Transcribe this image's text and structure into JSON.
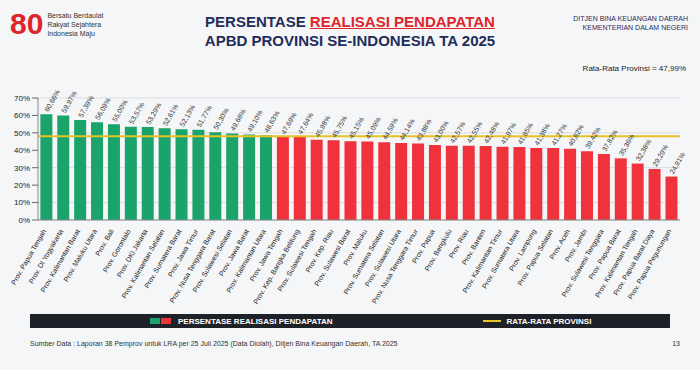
{
  "slide": {
    "logo_number": "80",
    "logo_text": [
      "Bersatu Berdaulat",
      "Rakyat Sejahtera",
      "Indonesia Maju"
    ],
    "title_lines": [
      "PERSENTASE REALISASI PENDAPATAN",
      "APBD PROVINSI SE-INDONESIA TA 2025"
    ],
    "title_highlight": "REALISASI PENDAPATAN",
    "agency": [
      "DITJEN BINA KEUANGAN DAERAH",
      "KEMENTERIAN DALAM NEGERI"
    ],
    "source": "Sumber Data : Laporan 38 Pemprov untuk LRA per 25 Juli 2025 (Data Diolah), Ditjen Bina Keuangan Daerah, TA 2025",
    "page": "13"
  },
  "chart_data": {
    "type": "bar",
    "categories": [
      "Prov. Papua Tengah",
      "Prov. DI Yogyakarta",
      "Prov. Kalimantan Barat",
      "Prov. Maluku Utara",
      "Prov. Bali",
      "Prov. Gorontalo",
      "Prov. DKI Jakarta",
      "Prov. Kalimantan Selatan",
      "Prov. Sumatera Barat",
      "Prov. Jawa Timur",
      "Prov. Nusa Tenggara Barat",
      "Prov. Sulawesi Selatan",
      "Prov. Jawa Barat",
      "Prov. Kalimantan Utara",
      "Prov. Jawa Tengah",
      "Prov. Kep. Bangka Belitung",
      "Prov. Sulawesi Tengah",
      "Prov. Kep. Riau",
      "Prov. Sulawesi Barat",
      "Prov. Maluku",
      "Prov. Sumatera Selatan",
      "Prov. Sulawesi Utara",
      "Prov. Nusa Tenggara Timur",
      "Prov. Papua",
      "Prov. Bengkulu",
      "Prov. Riau",
      "Prov. Banten",
      "Prov. Kalimantan Timur",
      "Prov. Sumatera Utara",
      "Prov. Lampung",
      "Prov. Papua Selatan",
      "Prov. Aceh",
      "Prov. Jambi",
      "Prov. Sulawesi Tenggara",
      "Prov. Papua Barat",
      "Prov. Kalimantan Tengah",
      "Prov. Papua Barat Daya",
      "Prov. Papua Pegunungan"
    ],
    "series": [
      {
        "name": "PERSENTASE REALISASI PENDAPATAN",
        "values": [
          60.66,
          59.97,
          57.39,
          56.09,
          55.0,
          53.57,
          53.29,
          52.61,
          52.13,
          51.77,
          50.3,
          49.68,
          49.1,
          48.63,
          47.69,
          47.64,
          45.98,
          45.75,
          45.15,
          45.09,
          44.59,
          44.14,
          43.88,
          43.0,
          42.57,
          42.55,
          42.48,
          41.97,
          41.85,
          41.38,
          41.27,
          40.82,
          39.42,
          37.82,
          35.36,
          32.38,
          29.29,
          24.91
        ],
        "value_labels": [
          "60,66%",
          "59,97%",
          "57,39%",
          "56,09%",
          "55,00%",
          "53,57%",
          "53,29%",
          "52,61%",
          "52,13%",
          "51,77%",
          "50,30%",
          "49,68%",
          "49,10%",
          "48,63%",
          "47,69%",
          "47,64%",
          "45,98%",
          "45,75%",
          "45,15%",
          "45,09%",
          "44,59%",
          "44,14%",
          "43,88%",
          "43,00%",
          "42,57%",
          "42,55%",
          "42,48%",
          "41,97%",
          "41,85%",
          "41,38%",
          "41,27%",
          "40,82%",
          "39,42%",
          "37,82%",
          "35,36%",
          "32,38%",
          "29,29%",
          "24,91%"
        ],
        "colors": [
          "#1aa36b",
          "#1aa36b",
          "#1aa36b",
          "#1aa36b",
          "#1aa36b",
          "#1aa36b",
          "#1aa36b",
          "#1aa36b",
          "#1aa36b",
          "#1aa36b",
          "#1aa36b",
          "#1aa36b",
          "#1aa36b",
          "#1aa36b",
          "#f0323c",
          "#f0323c",
          "#f0323c",
          "#f0323c",
          "#f0323c",
          "#f0323c",
          "#f0323c",
          "#f0323c",
          "#f0323c",
          "#f0323c",
          "#f0323c",
          "#f0323c",
          "#f0323c",
          "#f0323c",
          "#f0323c",
          "#f0323c",
          "#f0323c",
          "#f0323c",
          "#f0323c",
          "#f0323c",
          "#f0323c",
          "#f0323c",
          "#f0323c",
          "#f0323c"
        ]
      }
    ],
    "average": {
      "name": "RATA-RATA PROVINSI",
      "value": 47.99,
      "label": "Rata-Rata Provinsi = 47,99%",
      "color": "#e6c229"
    },
    "ylim": [
      0,
      70
    ],
    "yticks": [
      {
        "value": 0,
        "label": "0%"
      },
      {
        "value": 10,
        "label": "10%"
      },
      {
        "value": 20,
        "label": "20%"
      },
      {
        "value": 30,
        "label": "30%"
      },
      {
        "value": 40,
        "label": "40%"
      },
      {
        "value": 50,
        "label": "50%"
      },
      {
        "value": 60,
        "label": "60%"
      },
      {
        "value": 70,
        "label": "70%"
      }
    ],
    "grid": true,
    "data_labels": true,
    "legend": "bottom"
  }
}
